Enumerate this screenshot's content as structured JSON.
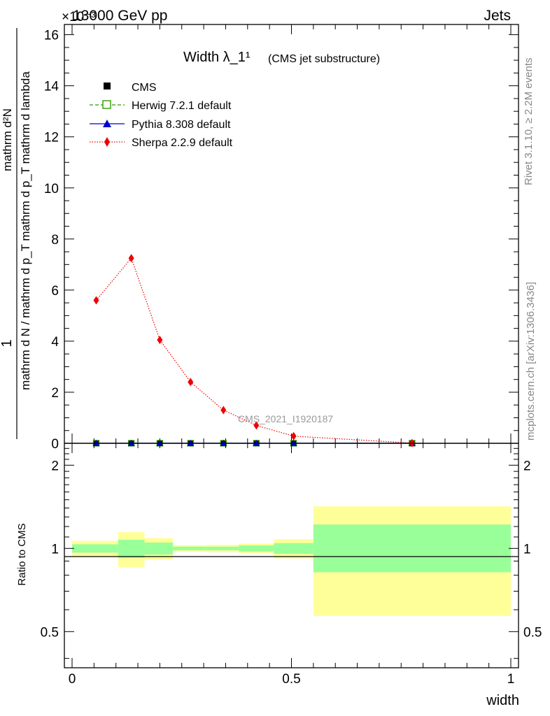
{
  "header": {
    "left": "13000 GeV pp",
    "right": "Jets",
    "exponent": "×10⁻³"
  },
  "side": {
    "rivet": "Rivet 3.1.10, ≥ 2.2M events",
    "mcplots": "mcplots.cern.ch [arXiv:1306.3436]"
  },
  "chart_data": [
    {
      "type": "line",
      "title": "Width λ_1¹",
      "subtitle": "(CMS jet substructure)",
      "watermark": "CMS_2021_I1920187",
      "xlabel": "",
      "ylabel_numerator": "1",
      "ylabel_denominator": "mathrm d N / mathrm d p_T mathrm d p_T mathrm d lambda",
      "ylabel_top": "mathrm d²N",
      "xlim": [
        0,
        1
      ],
      "ylim": [
        0,
        16.4
      ],
      "yticks": [
        "0",
        "2",
        "4",
        "6",
        "8",
        "10",
        "12",
        "14",
        "16"
      ],
      "x": [
        0.055,
        0.135,
        0.2,
        0.27,
        0.345,
        0.42,
        0.505,
        0.775
      ],
      "legend": [
        "CMS",
        "Herwig 7.2.1 default",
        "Pythia 8.308 default",
        "Sherpa 2.2.9 default"
      ],
      "series": [
        {
          "name": "CMS",
          "values": [
            0.003,
            0.003,
            0.003,
            0.003,
            0.003,
            0.003,
            0.003,
            0.003
          ],
          "color": "#000000"
        },
        {
          "name": "Herwig 7.2.1 default",
          "values": [
            0.003,
            0.003,
            0.003,
            0.003,
            0.003,
            0.003,
            0.003,
            0.003
          ],
          "color": "#339900"
        },
        {
          "name": "Pythia 8.308 default",
          "values": [
            0.003,
            0.003,
            0.003,
            0.003,
            0.003,
            0.003,
            0.003,
            0.003
          ],
          "color": "#0000cc"
        },
        {
          "name": "Sherpa 2.2.9 default",
          "values": [
            5.6,
            7.25,
            4.05,
            2.4,
            1.3,
            0.7,
            0.28,
            0.01
          ],
          "color": "#ee0000"
        }
      ]
    },
    {
      "type": "area",
      "ylabel": "Ratio to CMS",
      "xlabel": "width",
      "xlim": [
        0,
        1
      ],
      "ylim": [
        0.37,
        2.4
      ],
      "xticks": [
        "0",
        "0.5",
        "1"
      ],
      "yticks": [
        "0.5",
        "1",
        "2"
      ],
      "bins": [
        {
          "lo": 0.0,
          "hi": 0.105,
          "green": [
            0.965,
            1.035
          ],
          "yellow": [
            0.935,
            1.065
          ]
        },
        {
          "lo": 0.105,
          "hi": 0.165,
          "green": [
            0.925,
            1.075
          ],
          "yellow": [
            0.855,
            1.145
          ]
        },
        {
          "lo": 0.165,
          "hi": 0.23,
          "green": [
            0.95,
            1.05
          ],
          "yellow": [
            0.91,
            1.09
          ]
        },
        {
          "lo": 0.23,
          "hi": 0.305,
          "green": [
            0.985,
            1.015
          ],
          "yellow": [
            0.975,
            1.025
          ]
        },
        {
          "lo": 0.305,
          "hi": 0.38,
          "green": [
            0.985,
            1.015
          ],
          "yellow": [
            0.97,
            1.03
          ]
        },
        {
          "lo": 0.38,
          "hi": 0.46,
          "green": [
            0.975,
            1.025
          ],
          "yellow": [
            0.96,
            1.04
          ]
        },
        {
          "lo": 0.46,
          "hi": 0.55,
          "green": [
            0.955,
            1.045
          ],
          "yellow": [
            0.92,
            1.08
          ]
        },
        {
          "lo": 0.55,
          "hi": 1.0,
          "green": [
            0.82,
            1.22
          ],
          "yellow": [
            0.57,
            1.42
          ]
        }
      ],
      "colors": {
        "green": "#99ff99",
        "yellow": "#ffff99"
      }
    }
  ]
}
